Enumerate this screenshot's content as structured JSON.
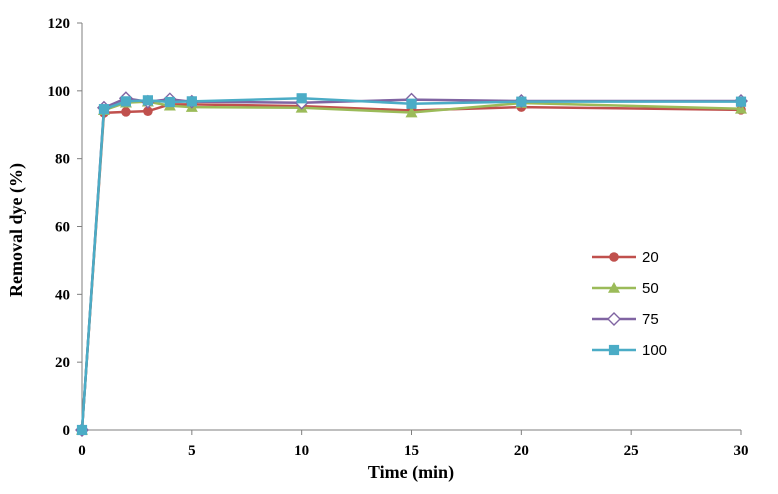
{
  "chart_data": {
    "type": "line",
    "title": "",
    "xlabel": "Time (min)",
    "ylabel": "Removal dye (%)",
    "xlim": [
      0,
      30
    ],
    "ylim": [
      0,
      120
    ],
    "xticks": [
      0,
      5,
      10,
      15,
      20,
      25,
      30
    ],
    "yticks": [
      0,
      20,
      40,
      60,
      80,
      100,
      120
    ],
    "grid": false,
    "legend_position": "right",
    "series": [
      {
        "name": "20",
        "color": "#C0504D",
        "marker": "circle",
        "x": [
          0,
          1,
          2,
          3,
          4,
          5,
          10,
          15,
          20,
          30
        ],
        "y": [
          0,
          93.5,
          93.8,
          94.0,
          96.0,
          96.0,
          95.5,
          94.2,
          95.2,
          94.4
        ]
      },
      {
        "name": "50",
        "color": "#9BBB59",
        "marker": "triangle",
        "x": [
          0,
          1,
          2,
          3,
          4,
          5,
          10,
          15,
          20,
          30
        ],
        "y": [
          0,
          94.3,
          96.5,
          96.8,
          95.6,
          95.2,
          95.0,
          93.6,
          96.4,
          94.7
        ]
      },
      {
        "name": "75",
        "color": "#8064A2",
        "marker": "diamond",
        "x": [
          0,
          1,
          2,
          3,
          4,
          5,
          10,
          15,
          20,
          30
        ],
        "y": [
          0,
          95.0,
          97.8,
          96.8,
          97.5,
          96.8,
          96.5,
          97.4,
          97.0,
          97.0
        ]
      },
      {
        "name": "100",
        "color": "#4BACC6",
        "marker": "square",
        "x": [
          0,
          1,
          2,
          3,
          4,
          5,
          10,
          15,
          20,
          30
        ],
        "y": [
          0,
          94.6,
          96.9,
          97.2,
          96.7,
          96.9,
          97.8,
          96.2,
          96.8,
          96.8
        ]
      }
    ]
  }
}
